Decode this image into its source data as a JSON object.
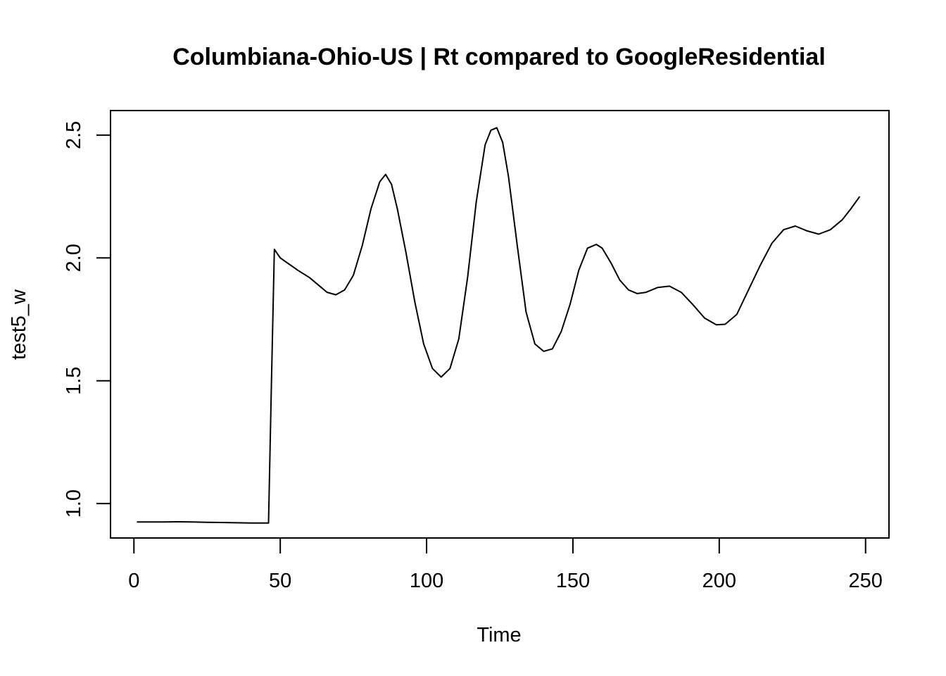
{
  "chart_data": {
    "type": "line",
    "title": "Columbiana-Ohio-US | Rt compared to GoogleResidential",
    "xlabel": "Time",
    "ylabel": "test5_w",
    "xlim": [
      -8,
      258
    ],
    "ylim": [
      0.86,
      2.6
    ],
    "x_ticks": [
      0,
      50,
      100,
      150,
      200,
      250
    ],
    "y_ticks": [
      1.0,
      1.5,
      2.0,
      2.5
    ],
    "x_tick_labels": [
      "0",
      "50",
      "100",
      "150",
      "200",
      "250"
    ],
    "y_tick_labels": [
      "1.0",
      "1.5",
      "2.0",
      "2.5"
    ],
    "grid": false,
    "legend": "none",
    "series": [
      {
        "color": "#000000",
        "x": [
          1,
          5,
          10,
          15,
          20,
          25,
          30,
          35,
          40,
          45,
          46,
          47,
          48,
          50,
          53,
          56,
          60,
          63,
          66,
          69,
          72,
          75,
          78,
          81,
          84,
          86,
          88,
          90,
          93,
          96,
          99,
          102,
          105,
          108,
          111,
          114,
          117,
          120,
          122,
          124,
          126,
          128,
          131,
          134,
          137,
          140,
          143,
          146,
          149,
          152,
          155,
          158,
          160,
          163,
          166,
          169,
          172,
          175,
          179,
          183,
          187,
          191,
          195,
          199,
          202,
          206,
          210,
          214,
          218,
          222,
          226,
          230,
          234,
          238,
          242,
          245,
          248
        ],
        "y": [
          0.925,
          0.925,
          0.925,
          0.926,
          0.925,
          0.924,
          0.923,
          0.922,
          0.921,
          0.921,
          0.921,
          1.5,
          2.035,
          2.0,
          1.975,
          1.95,
          1.92,
          1.89,
          1.86,
          1.85,
          1.87,
          1.93,
          2.05,
          2.2,
          2.31,
          2.34,
          2.3,
          2.2,
          2.02,
          1.82,
          1.65,
          1.55,
          1.515,
          1.55,
          1.67,
          1.92,
          2.23,
          2.46,
          2.52,
          2.53,
          2.47,
          2.33,
          2.05,
          1.78,
          1.65,
          1.62,
          1.63,
          1.7,
          1.81,
          1.95,
          2.04,
          2.055,
          2.04,
          1.98,
          1.91,
          1.87,
          1.855,
          1.86,
          1.88,
          1.885,
          1.86,
          1.81,
          1.755,
          1.728,
          1.73,
          1.77,
          1.87,
          1.97,
          2.06,
          2.115,
          2.13,
          2.11,
          2.097,
          2.115,
          2.155,
          2.2,
          2.25
        ]
      }
    ]
  }
}
